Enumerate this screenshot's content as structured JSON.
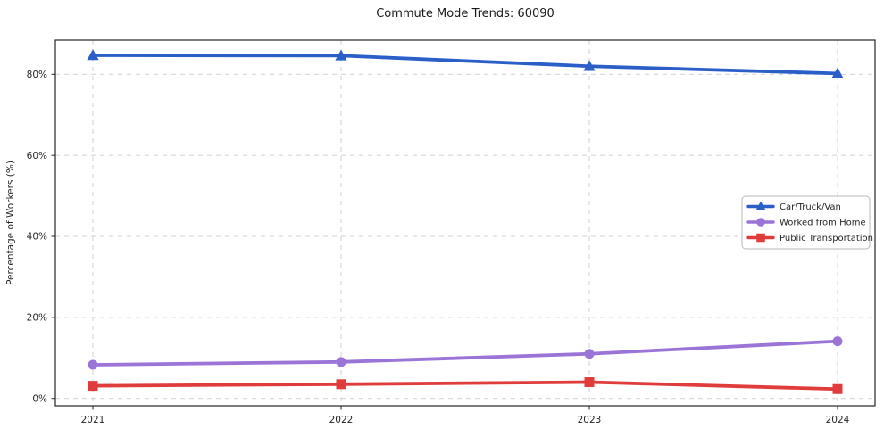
{
  "chart_data": {
    "type": "line",
    "title": "Commute Mode Trends: 60090",
    "xlabel": "",
    "ylabel": "Percentage of Workers (%)",
    "categories": [
      "2021",
      "2022",
      "2023",
      "2024"
    ],
    "series": [
      {
        "name": "Car/Truck/Van",
        "marker": "triangle",
        "color": "#2b5fc7",
        "values": [
          84.7,
          84.6,
          82.0,
          80.2
        ]
      },
      {
        "name": "Worked from Home",
        "marker": "circle",
        "color": "#9b74d8",
        "values": [
          8.3,
          9.0,
          11.0,
          14.1
        ]
      },
      {
        "name": "Public Transportation",
        "marker": "square",
        "color": "#e03c3c",
        "values": [
          3.1,
          3.5,
          4.0,
          2.3
        ]
      }
    ],
    "y_ticks": [
      {
        "value": 0,
        "label": "0%"
      },
      {
        "value": 20,
        "label": "20%"
      },
      {
        "value": 40,
        "label": "40%"
      },
      {
        "value": 60,
        "label": "60%"
      },
      {
        "value": 80,
        "label": "80%"
      }
    ],
    "ylim": [
      -1.9,
      88.6
    ],
    "grid": true,
    "grid_style": "dashed",
    "grid_color": "#cccccc",
    "axis_color": "#262626",
    "background_color": "#ffffff",
    "legend_position": "center right"
  }
}
